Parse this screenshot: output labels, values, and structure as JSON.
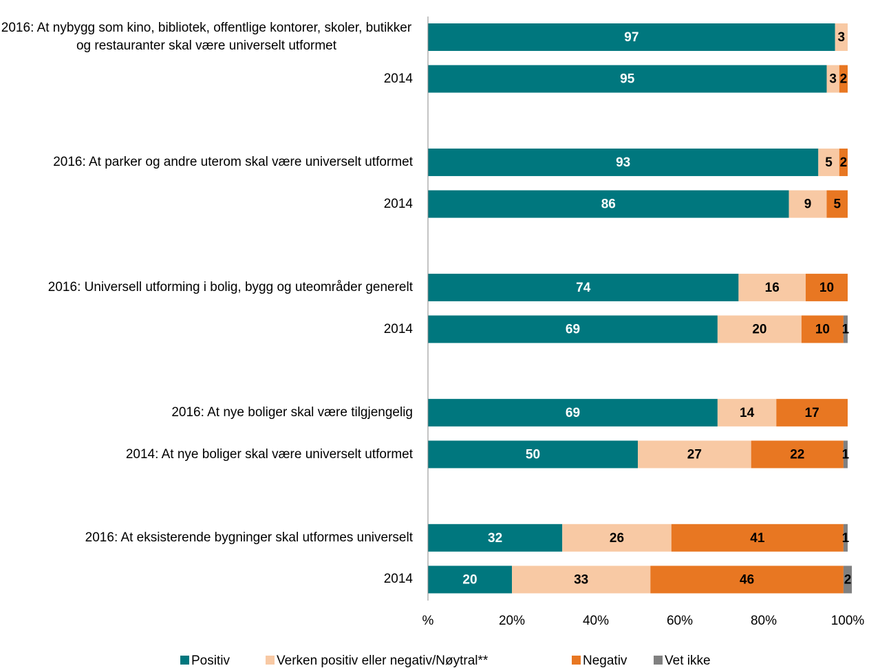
{
  "chart_data": {
    "type": "stacked-barh",
    "categories": [
      "2016: At nybygg som kino, bibliotek, offentlige kontorer, skoler, butikker og restauranter skal være universelt utformet",
      "2014",
      null,
      "2016: At parker og andre uterom skal være universelt utformet",
      "2014",
      null,
      "2016: Universell utforming i bolig, bygg og uteområder generelt",
      "2014",
      null,
      "2016: At nye boliger skal være tilgjengelig",
      "2014: At nye boliger skal være universelt utformet",
      null,
      "2016: At eksisterende bygninger skal utformes universelt",
      "2014"
    ],
    "series": [
      {
        "name": "Positiv",
        "color": "#00777e",
        "values": [
          97,
          95,
          null,
          93,
          86,
          null,
          74,
          69,
          null,
          69,
          50,
          null,
          32,
          20
        ]
      },
      {
        "name": "Verken positiv eller negativ/Nøytral**",
        "color": "#f8c9a4",
        "values": [
          3,
          3,
          null,
          5,
          9,
          null,
          16,
          20,
          null,
          14,
          27,
          null,
          26,
          33
        ]
      },
      {
        "name": "Negativ",
        "color": "#e87722",
        "values": [
          null,
          2,
          null,
          2,
          5,
          null,
          10,
          10,
          null,
          17,
          22,
          null,
          41,
          46
        ]
      },
      {
        "name": "Vet ikke",
        "color": "#808080",
        "values": [
          null,
          null,
          null,
          null,
          null,
          null,
          null,
          1,
          null,
          null,
          1,
          null,
          1,
          2
        ]
      }
    ],
    "xlim": [
      0,
      100
    ],
    "xticks": [
      {
        "value": 0,
        "label": "%"
      },
      {
        "value": 20,
        "label": "20%"
      },
      {
        "value": 40,
        "label": "40%"
      },
      {
        "value": 60,
        "label": "60%"
      },
      {
        "value": 80,
        "label": "80%"
      },
      {
        "value": 100,
        "label": "100%"
      }
    ],
    "legend": "bottom"
  }
}
